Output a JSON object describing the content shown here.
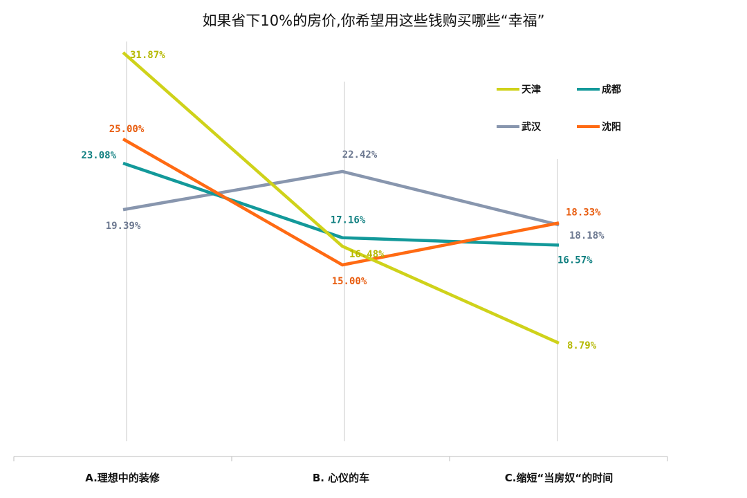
{
  "chart_data": {
    "type": "line",
    "title": "如果省下10%的房价,你希望用这些钱购买哪些“幸福”",
    "categories": [
      "A.理想中的装修",
      "B. 心仪的车",
      "C.缩短“当房奴“的时间"
    ],
    "series": [
      {
        "name": "天津",
        "color": "#cfd21a",
        "values": [
          31.87,
          16.48,
          8.79
        ],
        "labels": [
          "31.87%",
          "16.48%",
          "8.79%"
        ]
      },
      {
        "name": "成都",
        "color": "#13999a",
        "values": [
          23.08,
          17.16,
          16.57
        ],
        "labels": [
          "23.08%",
          "17.16%",
          "16.57%"
        ]
      },
      {
        "name": "武汉",
        "color": "#8896ae",
        "values": [
          19.39,
          22.42,
          18.18
        ],
        "labels": [
          "19.39%",
          "22.42%",
          "18.18%"
        ]
      },
      {
        "name": "沈阳",
        "color": "#ff6a13",
        "values": [
          25.0,
          15.0,
          18.33
        ],
        "labels": [
          "25.00%",
          "15.00%",
          "18.33%"
        ]
      }
    ],
    "label_colors": {
      "天津": "#b5b800",
      "成都": "#0f7f80",
      "武汉": "#6c7890",
      "沈阳": "#e85d10"
    },
    "ylim": [
      0,
      35
    ],
    "grid": "vertical lines at categories",
    "legend": "top-right",
    "xlabel": "",
    "ylabel": ""
  }
}
